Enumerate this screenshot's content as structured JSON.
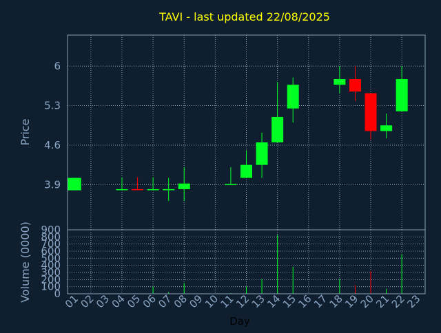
{
  "colors": {
    "background": "#0f1f30",
    "grid": "#8aa0b8",
    "frame": "#8aa0b8",
    "title": "#ffff00",
    "axis_text": "#8aa6c4",
    "axis_title": "#8aa6c4",
    "xlabel_text": "#000000",
    "up": "#00ff22",
    "down": "#ff0000"
  },
  "chart_data": [
    {
      "type": "candlestick",
      "title": "TAVI - last updated 22/08/2025",
      "ylabel": "Price",
      "ylim": [
        3.1,
        6.55
      ],
      "yticks": [
        3.9,
        4.6,
        5.3,
        6
      ],
      "ytick_labels": [
        "3.9",
        "4.6",
        "5.3",
        "6"
      ],
      "xlim": [
        0.5,
        23.5
      ],
      "grid": true,
      "candles": [
        {
          "day": 1,
          "open": 3.8,
          "high": 4.02,
          "low": 3.8,
          "close": 4.02
        },
        {
          "day": 4,
          "open": 3.81,
          "high": 4.03,
          "low": 3.81,
          "close": 3.82
        },
        {
          "day": 5,
          "open": 3.82,
          "high": 4.03,
          "low": 3.81,
          "close": 3.81
        },
        {
          "day": 6,
          "open": 3.81,
          "high": 4.03,
          "low": 3.81,
          "close": 3.82
        },
        {
          "day": 7,
          "open": 3.81,
          "high": 4.02,
          "low": 3.61,
          "close": 3.82
        },
        {
          "day": 8,
          "open": 3.82,
          "high": 4.21,
          "low": 3.61,
          "close": 3.92
        },
        {
          "day": 11,
          "open": 3.9,
          "high": 4.21,
          "low": 3.9,
          "close": 3.91
        },
        {
          "day": 12,
          "open": 4.02,
          "high": 4.51,
          "low": 4.02,
          "close": 4.25
        },
        {
          "day": 13,
          "open": 4.25,
          "high": 4.82,
          "low": 4.02,
          "close": 4.65
        },
        {
          "day": 14,
          "open": 4.65,
          "high": 5.72,
          "low": 4.65,
          "close": 5.1
        },
        {
          "day": 15,
          "open": 5.25,
          "high": 5.8,
          "low": 5.0,
          "close": 5.67
        },
        {
          "day": 18,
          "open": 5.67,
          "high": 6.0,
          "low": 5.52,
          "close": 5.77
        },
        {
          "day": 19,
          "open": 5.77,
          "high": 6.0,
          "low": 5.38,
          "close": 5.55
        },
        {
          "day": 20,
          "open": 5.52,
          "high": 5.52,
          "low": 4.7,
          "close": 4.85
        },
        {
          "day": 21,
          "open": 4.85,
          "high": 5.16,
          "low": 4.72,
          "close": 4.95
        },
        {
          "day": 22,
          "open": 5.2,
          "high": 6.0,
          "low": 5.2,
          "close": 5.77
        }
      ]
    },
    {
      "type": "bar",
      "ylabel": "Volume (0000)",
      "xlabel": "Day",
      "ylim": [
        0,
        900
      ],
      "yticks": [
        0,
        100,
        200,
        300,
        400,
        500,
        600,
        700,
        800,
        900
      ],
      "ytick_labels": [
        "0",
        "100",
        "200",
        "300",
        "400",
        "500",
        "600",
        "700",
        "800",
        "900"
      ],
      "xlim": [
        0.5,
        23.5
      ],
      "categories": [
        "01",
        "02",
        "03",
        "04",
        "05",
        "06",
        "07",
        "08",
        "09",
        "10",
        "11",
        "12",
        "13",
        "14",
        "15",
        "16",
        "17",
        "18",
        "19",
        "20",
        "21",
        "22",
        "23"
      ],
      "grid": true,
      "bars": [
        {
          "day": 1,
          "value": 2,
          "dir": "down"
        },
        {
          "day": 4,
          "value": 5,
          "dir": "up"
        },
        {
          "day": 5,
          "value": 5,
          "dir": "up"
        },
        {
          "day": 6,
          "value": 100,
          "dir": "up"
        },
        {
          "day": 7,
          "value": 25,
          "dir": "up"
        },
        {
          "day": 8,
          "value": 150,
          "dir": "up"
        },
        {
          "day": 11,
          "value": 10,
          "dir": "up"
        },
        {
          "day": 12,
          "value": 100,
          "dir": "up"
        },
        {
          "day": 13,
          "value": 210,
          "dir": "up"
        },
        {
          "day": 14,
          "value": 830,
          "dir": "up"
        },
        {
          "day": 15,
          "value": 380,
          "dir": "up"
        },
        {
          "day": 18,
          "value": 210,
          "dir": "up"
        },
        {
          "day": 19,
          "value": 120,
          "dir": "down"
        },
        {
          "day": 20,
          "value": 320,
          "dir": "down"
        },
        {
          "day": 21,
          "value": 70,
          "dir": "up"
        },
        {
          "day": 22,
          "value": 560,
          "dir": "up"
        }
      ]
    }
  ]
}
